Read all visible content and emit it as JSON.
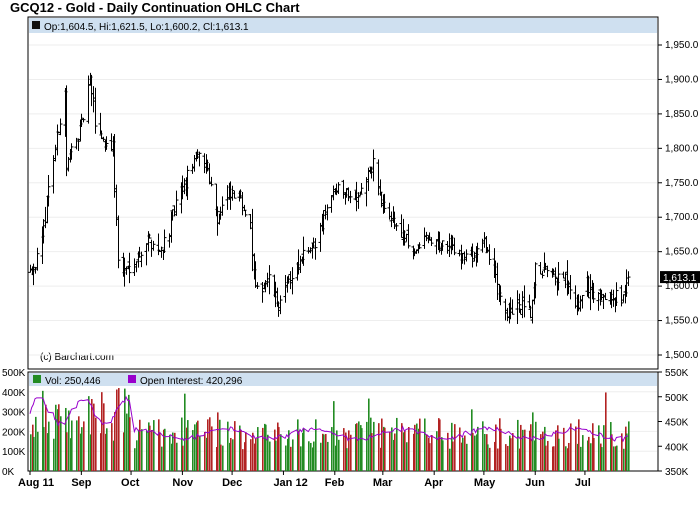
{
  "title": "GCQ12 - Gold - Daily Continuation OHLC Chart",
  "price_panel": {
    "legend": "Op:1,604.5, Hi:1,621.5, Lo:1,600.2, Cl:1,613.1",
    "watermark": "(c) Barchart.com",
    "last_label": "1,613.1",
    "y_ticks": [
      "1,950.0",
      "1,900.0",
      "1,850.0",
      "1,800.0",
      "1,750.0",
      "1,700.0",
      "1,650.0",
      "1,600.0",
      "1,550.0",
      "1,500.0"
    ]
  },
  "volume_panel": {
    "legend_vol": "Vol: 250,446",
    "legend_oi": "Open Interest: 420,296",
    "left_ticks": [
      "500K",
      "400K",
      "300K",
      "200K",
      "100K",
      "0K"
    ],
    "right_ticks": [
      "550K",
      "500K",
      "450K",
      "400K",
      "350K"
    ]
  },
  "x_ticks": [
    "Aug 11",
    "Sep",
    "Oct",
    "Nov",
    "Dec",
    "Jan 12",
    "Feb",
    "Mar",
    "Apr",
    "May",
    "Jun",
    "Jul"
  ],
  "colors": {
    "up_volume": "#228b22",
    "down_volume": "#b22222",
    "open_interest": "#9900cc",
    "legend_bg": "#cfe0f0"
  },
  "chart_data": {
    "type": "ohlc",
    "period": "daily",
    "x_range": [
      "Aug 2011",
      "Jul 2012"
    ],
    "price_ylim": [
      1500,
      1975
    ],
    "price_anchors": [
      [
        "Aug 1",
        1620
      ],
      [
        "Aug 8",
        1660
      ],
      [
        "Aug 12",
        1750
      ],
      [
        "Aug 16",
        1800
      ],
      [
        "Aug 22",
        1880
      ],
      [
        "Aug 23",
        1770
      ],
      [
        "Aug 26",
        1800
      ],
      [
        "Sep 1",
        1830
      ],
      [
        "Sep 6",
        1900
      ],
      [
        "Sep 9",
        1840
      ],
      [
        "Sep 14",
        1810
      ],
      [
        "Sep 20",
        1800
      ],
      [
        "Sep 23",
        1640
      ],
      [
        "Sep 26",
        1620
      ],
      [
        "Oct 4",
        1640
      ],
      [
        "Oct 11",
        1670
      ],
      [
        "Oct 18",
        1650
      ],
      [
        "Oct 24",
        1680
      ],
      [
        "Oct 28",
        1720
      ],
      [
        "Nov 4",
        1755
      ],
      [
        "Nov 9",
        1790
      ],
      [
        "Nov 15",
        1780
      ],
      [
        "Nov 22",
        1700
      ],
      [
        "Nov 29",
        1730
      ],
      [
        "Dec 6",
        1730
      ],
      [
        "Dec 12",
        1680
      ],
      [
        "Dec 15",
        1590
      ],
      [
        "Dec 22",
        1610
      ],
      [
        "Dec 29",
        1570
      ],
      [
        "Jan 6",
        1620
      ],
      [
        "Jan 13",
        1640
      ],
      [
        "Jan 20",
        1660
      ],
      [
        "Jan 27",
        1720
      ],
      [
        "Feb 3",
        1750
      ],
      [
        "Feb 10",
        1730
      ],
      [
        "Feb 17",
        1740
      ],
      [
        "Feb 24",
        1780
      ],
      [
        "Feb 29",
        1720
      ],
      [
        "Mar 6",
        1700
      ],
      [
        "Mar 13",
        1670
      ],
      [
        "Mar 20",
        1650
      ],
      [
        "Mar 27",
        1670
      ],
      [
        "Apr 3",
        1660
      ],
      [
        "Apr 10",
        1660
      ],
      [
        "Apr 17",
        1645
      ],
      [
        "Apr 24",
        1645
      ],
      [
        "May 1",
        1665
      ],
      [
        "May 8",
        1610
      ],
      [
        "May 15",
        1560
      ],
      [
        "May 22",
        1570
      ],
      [
        "May 29",
        1555
      ],
      [
        "Jun 1",
        1620
      ],
      [
        "Jun 6",
        1620
      ],
      [
        "Jun 12",
        1610
      ],
      [
        "Jun 19",
        1610
      ],
      [
        "Jun 25",
        1565
      ],
      [
        "Jul 2",
        1600
      ],
      [
        "Jul 9",
        1580
      ],
      [
        "Jul 16",
        1590
      ],
      [
        "Jul 23",
        1580
      ],
      [
        "Jul 27",
        1613.1
      ]
    ],
    "last_bar": {
      "open": 1604.5,
      "high": 1621.5,
      "low": 1600.2,
      "close": 1613.1
    },
    "volume_ylim_left": [
      0,
      500000
    ],
    "open_interest_ylim_right": [
      350000,
      550000
    ],
    "last_volume": 250446,
    "last_open_interest": 420296
  }
}
